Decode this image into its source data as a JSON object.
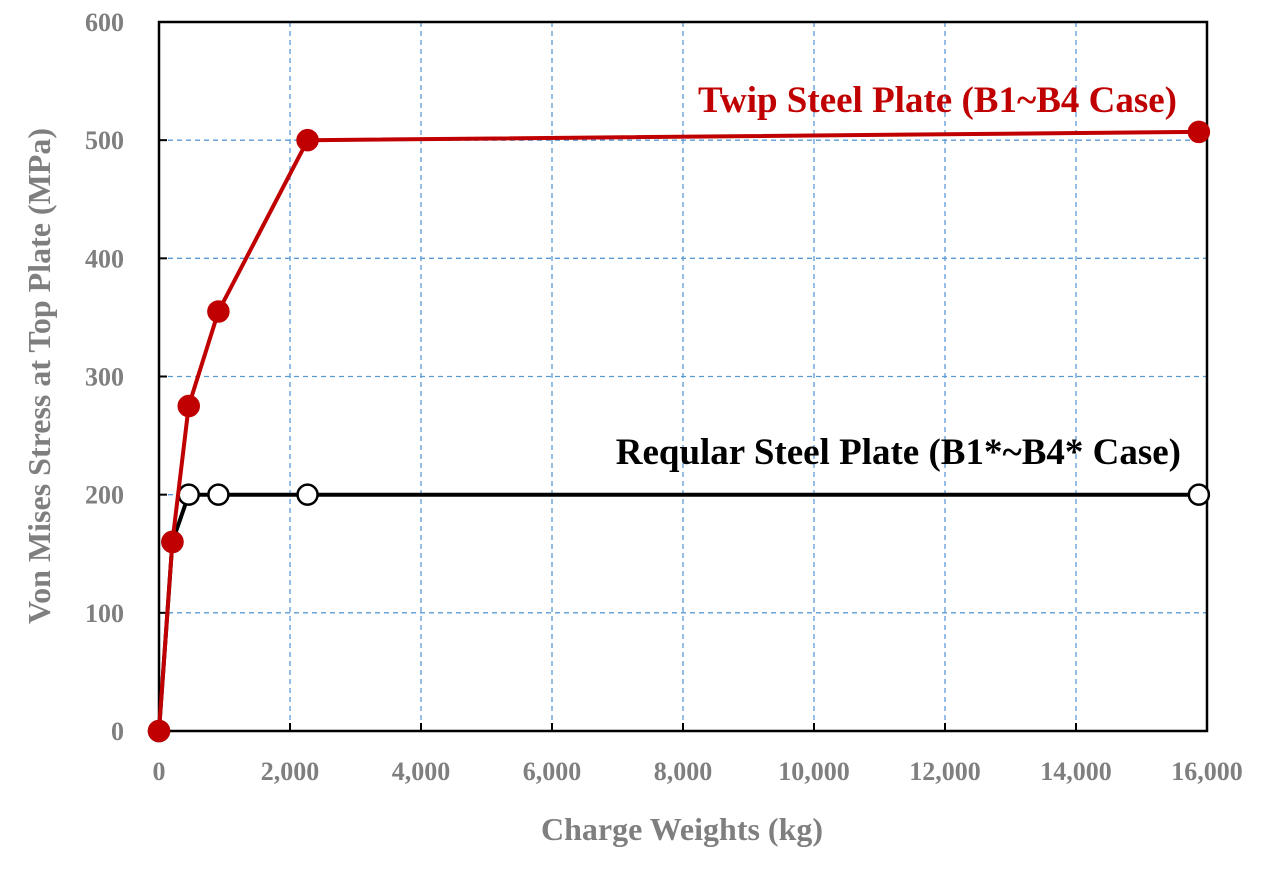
{
  "chart_data": {
    "type": "line",
    "title": "",
    "xlabel": "Charge Weights (kg)",
    "ylabel": "Von Mises Stress at Top Plate (MPa)",
    "xlim": [
      0,
      16000
    ],
    "ylim": [
      0,
      600
    ],
    "x_ticks": [
      0,
      2000,
      4000,
      6000,
      8000,
      10000,
      12000,
      14000,
      16000
    ],
    "y_ticks": [
      0,
      100,
      200,
      300,
      400,
      500,
      600
    ],
    "x_tick_labels": [
      "0",
      "2,000",
      "4,000",
      "6,000",
      "8,000",
      "10,000",
      "12,000",
      "14,000",
      "16,000"
    ],
    "y_tick_labels": [
      "0",
      "100",
      "200",
      "300",
      "400",
      "500",
      "600"
    ],
    "grid": true,
    "legend": "none",
    "series": [
      {
        "name": "Twip Steel Plate (B1~B4 Case)",
        "color": "#c00000",
        "marker": "filled-circle",
        "x": [
          0,
          205,
          454,
          907,
          2268,
          15876
        ],
        "y": [
          0,
          160,
          275,
          355,
          500,
          507
        ]
      },
      {
        "name": "Reqular Steel Plate (B1*~B4* Case)",
        "color": "#000000",
        "marker": "open-circle",
        "x": [
          0,
          205,
          454,
          907,
          2268,
          15876
        ],
        "y": [
          0,
          160,
          200,
          200,
          200,
          200
        ]
      }
    ]
  }
}
